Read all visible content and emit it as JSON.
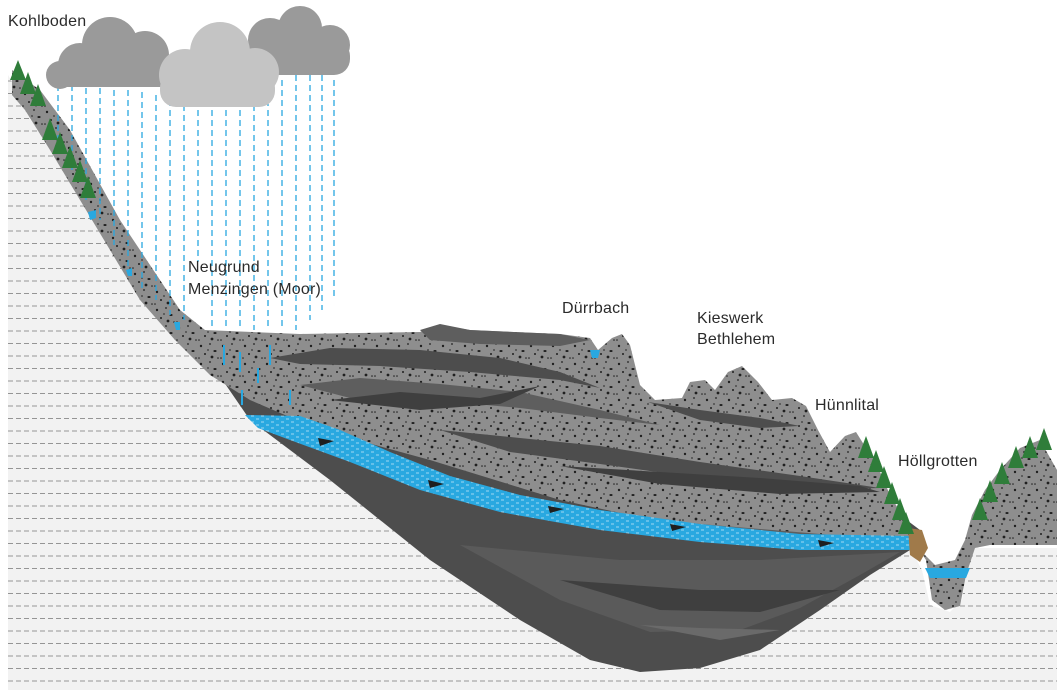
{
  "labels": {
    "kohlboden": "Kohlboden",
    "neugrund": "Neugrund",
    "menzingen": "Menzingen (Moor)",
    "duerrbach": "Dürrbach",
    "kieswerk": "Kieswerk",
    "bethlehem": "Bethlehem",
    "huennlital": "Hünnlital",
    "hoellgrotten": "Höllgrotten"
  },
  "colors": {
    "bedrock_fill": "#f2f2f2",
    "bedrock_lines": "#8a8a8a",
    "gravel": "#8e8e8e",
    "gravel_dots": "#1f1f1f",
    "dark_layer": "#4d4d4d",
    "mid_layer": "#5e5e5e",
    "aquifer": "#29a8e0",
    "cloud_dark": "#9a9a9a",
    "cloud_light": "#c4c4c4",
    "rain": "#29a8e0",
    "tree": "#2f7d3a",
    "rock": "#a07a4a"
  }
}
